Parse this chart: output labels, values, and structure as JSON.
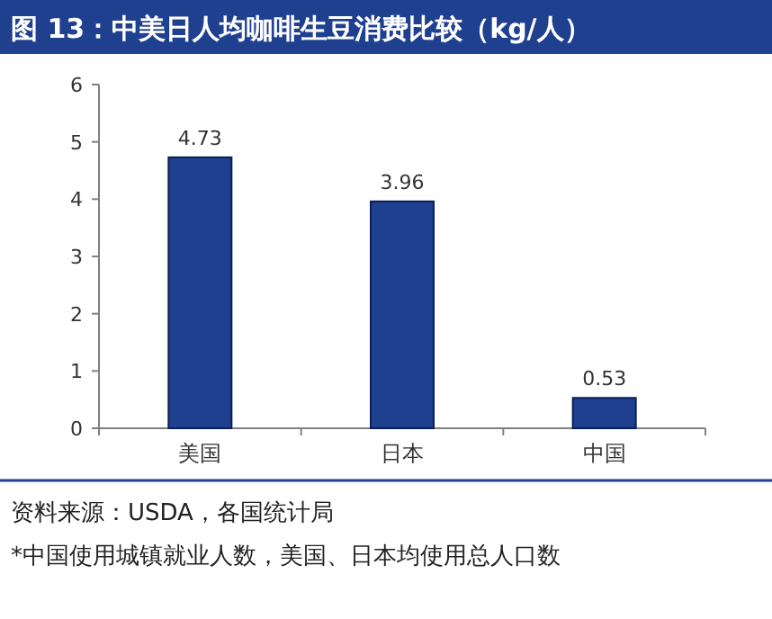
{
  "chart_data": {
    "type": "bar",
    "title": "图 13：中美日人均咖啡生豆消费比较（kg/人）",
    "categories": [
      "美国",
      "日本",
      "中国"
    ],
    "values": [
      4.73,
      3.96,
      0.53
    ],
    "color": "#1f3f8f",
    "ylim": [
      0,
      6
    ],
    "yticks": [
      0,
      1,
      2,
      3,
      4,
      5,
      6
    ],
    "data_labels": true,
    "annotations": [
      "资料来源：USDA，各国统计局",
      "*中国使用城镇就业人数，美国、日本均使用总人口数"
    ]
  }
}
